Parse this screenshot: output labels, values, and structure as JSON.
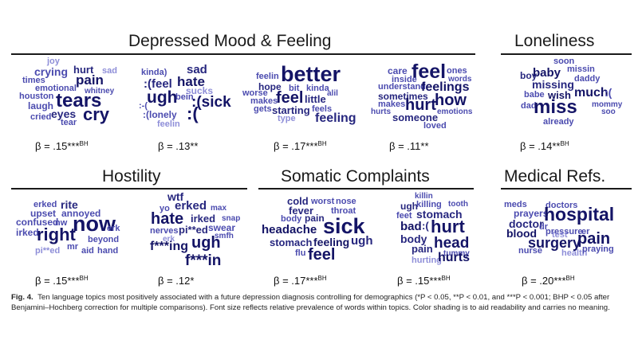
{
  "colors": {
    "light": "#8e8ed8",
    "mid": "#4b4baf",
    "dark": "#27277f",
    "darkest": "#141466"
  },
  "sections": [
    {
      "title": "Depressed Mood & Feeling"
    },
    {
      "title": "Loneliness"
    },
    {
      "title": "Hostility"
    },
    {
      "title": "Somatic Complaints"
    },
    {
      "title": "Medical Refs."
    }
  ],
  "clouds": [
    {
      "beta": "β = .15***",
      "sup": "BH",
      "words": [
        "joy",
        "crying",
        "hurt",
        "sad",
        "times",
        "pain",
        "emotional",
        "whitney",
        "houston",
        "tears",
        "laugh",
        "eyes",
        "cry",
        "cried",
        "tear"
      ]
    },
    {
      "beta": "β = .13**",
      "sup": "",
      "words": [
        "kinda)",
        "sad",
        ":(feel",
        "hate",
        "sucks",
        "ugh",
        "bein",
        ":(sick",
        ":-(",
        ":(lonely",
        ":(",
        "feelin"
      ]
    },
    {
      "beta": "β = .17***",
      "sup": "BH",
      "words": [
        "feelin",
        "better",
        "hope",
        "bit",
        "kinda",
        "worse",
        "feel",
        "alil",
        "makes",
        "little",
        "gets",
        "starting",
        "feels",
        "type",
        "feeling"
      ]
    },
    {
      "beta": "β = .11**",
      "sup": "",
      "words": [
        "care",
        "feel",
        "ones",
        "inside",
        "words",
        "understand",
        "feelings",
        "sometimes",
        "how",
        "makes",
        "hurt",
        "hurts",
        "emotions",
        "someone",
        "loved"
      ]
    },
    {
      "beta": "β = .14**",
      "sup": "BH",
      "words": [
        "soon",
        "baby",
        "missin",
        "boy",
        "daddy",
        "missing",
        "babe",
        "wish",
        "much",
        ":(",
        "dad",
        "miss",
        "mommy",
        "soo",
        "already"
      ]
    },
    {
      "beta": "β = .15***",
      "sup": "BH",
      "words": [
        "erked",
        "rite",
        "upset",
        "annoyed",
        "confused",
        "nw",
        "now",
        "irked",
        "erk",
        "right",
        "beyond",
        "pi**ed",
        "mr",
        "aid",
        "hand"
      ]
    },
    {
      "beta": "β = .12*",
      "sup": "",
      "words": [
        "wtf",
        "yo",
        "erked",
        "max",
        "hate",
        "irked",
        "snap",
        "nerves",
        "pi**ed",
        "swear",
        "erk",
        "smfh",
        "f***ing",
        "ugh",
        "f***in"
      ]
    },
    {
      "beta": "β = .17***",
      "sup": "BH",
      "words": [
        "cold",
        "worst",
        "nose",
        "fever",
        "throat",
        "body",
        "pain",
        "headache",
        "sick",
        "stomach",
        "feeling",
        "ugh",
        "flu",
        "feel"
      ]
    },
    {
      "beta": "β = .15***",
      "sup": "BH",
      "words": [
        "killin",
        "ugh",
        "killing",
        "tooth",
        "feet",
        "stomach",
        "bad",
        ":(",
        "hurt",
        "body",
        "head",
        "pain",
        "tummy",
        "hurting",
        "hurts"
      ]
    },
    {
      "beta": "β = .20***",
      "sup": "BH",
      "words": [
        "meds",
        "doctors",
        "prayers",
        "hospital",
        "doctor",
        "dr",
        "blood",
        "pressure",
        "er",
        "surgery",
        "test",
        "pain",
        "nurse",
        "health",
        "praying"
      ]
    }
  ],
  "caption": {
    "label": "Fig. 4.",
    "text": "Ten language topics most positively associated with a future depression diagnosis controlling for demographics (*P < 0.05, **P < 0.01, and ***P < 0.001; BHP < 0.05 after Benjamini–Hochberg correction for multiple comparisons). Font size reflects relative prevalence of words within topics. Color shading is to aid readability and carries no meaning."
  }
}
